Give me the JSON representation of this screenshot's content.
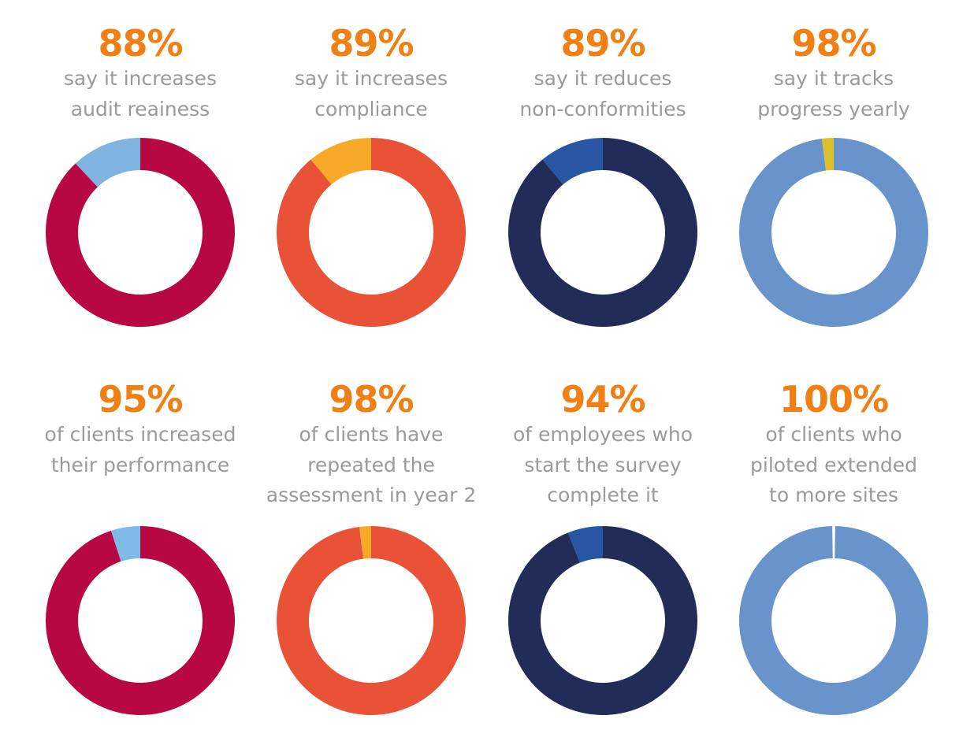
{
  "chart_data": [
    {
      "type": "pie",
      "value": 88,
      "label": "88%",
      "description": [
        "say it increases",
        "audit reainess"
      ],
      "colors": {
        "main": "#b80844",
        "remainder": "#7fb3e0"
      }
    },
    {
      "type": "pie",
      "value": 89,
      "label": "89%",
      "description": [
        "say it increases",
        "compliance"
      ],
      "colors": {
        "main": "#e95236",
        "remainder": "#f7a928"
      }
    },
    {
      "type": "pie",
      "value": 89,
      "label": "89%",
      "description": [
        "say it reduces",
        "non-conformities"
      ],
      "colors": {
        "main": "#212c58",
        "remainder": "#2956a3"
      }
    },
    {
      "type": "pie",
      "value": 98,
      "label": "98%",
      "description": [
        "say it tracks",
        "progress yearly"
      ],
      "colors": {
        "main": "#6894cb",
        "remainder": "#dcc12c"
      }
    },
    {
      "type": "pie",
      "value": 95,
      "label": "95%",
      "description": [
        "of clients increased",
        "their performance"
      ],
      "colors": {
        "main": "#b80844",
        "remainder": "#7fb9e8"
      }
    },
    {
      "type": "pie",
      "value": 98,
      "label": "98%",
      "description": [
        "of clients have",
        "repeated the",
        "assessment in year 2"
      ],
      "colors": {
        "main": "#e95236",
        "remainder": "#f7a928"
      }
    },
    {
      "type": "pie",
      "value": 94,
      "label": "94%",
      "description": [
        "of employees who",
        "start the survey",
        "complete it"
      ],
      "colors": {
        "main": "#212c58",
        "remainder": "#2956a3"
      }
    },
    {
      "type": "pie",
      "value": 100,
      "label": "100%",
      "description": [
        "of clients who",
        "piloted extended",
        "to more sites"
      ],
      "colors": {
        "main": "#6894cb",
        "remainder": "#6894cb"
      }
    }
  ],
  "accent_color": "#f07f14"
}
